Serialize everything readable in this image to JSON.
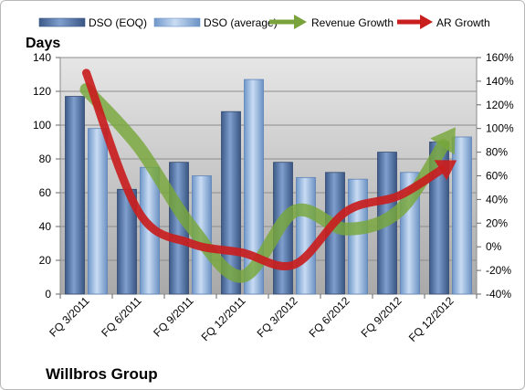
{
  "company_label": "Willbros Group",
  "chart_data": {
    "type": "bar",
    "categories": [
      "FQ 3/2011",
      "FQ 6/2011",
      "FQ 9/2011",
      "FQ 12/2011",
      "FQ 3/2012",
      "FQ 6/2012",
      "FQ 9/2012",
      "FQ 12/2012"
    ],
    "ylabel": "Days",
    "ylim": [
      0,
      140
    ],
    "yticks": [
      0,
      20,
      40,
      60,
      80,
      100,
      120,
      140
    ],
    "y2lim": [
      -40,
      160
    ],
    "y2ticks": [
      "-40%",
      "-20%",
      "0%",
      "20%",
      "40%",
      "60%",
      "80%",
      "100%",
      "120%",
      "140%",
      "160%"
    ],
    "grid": true,
    "legend_position": "top",
    "series": [
      {
        "name": "DSO (EOQ)",
        "type": "bar",
        "axis": "left",
        "color": "#4f6fa0",
        "values": [
          117,
          62,
          78,
          108,
          78,
          72,
          84,
          90
        ]
      },
      {
        "name": "DSO (average)",
        "type": "bar",
        "axis": "left",
        "color": "#8fb4e3",
        "values": [
          98,
          75,
          70,
          127,
          69,
          68,
          72,
          93
        ]
      },
      {
        "name": "Revenue Growth",
        "type": "line",
        "axis": "right",
        "unit": "%",
        "color": "#77a73a",
        "values": [
          133,
          85,
          18,
          -25,
          30,
          15,
          30,
          95
        ]
      },
      {
        "name": "AR Growth",
        "type": "line",
        "axis": "right",
        "unit": "%",
        "color": "#c81e1e",
        "values": [
          147,
          30,
          3,
          -5,
          -15,
          30,
          43,
          70
        ]
      }
    ]
  }
}
